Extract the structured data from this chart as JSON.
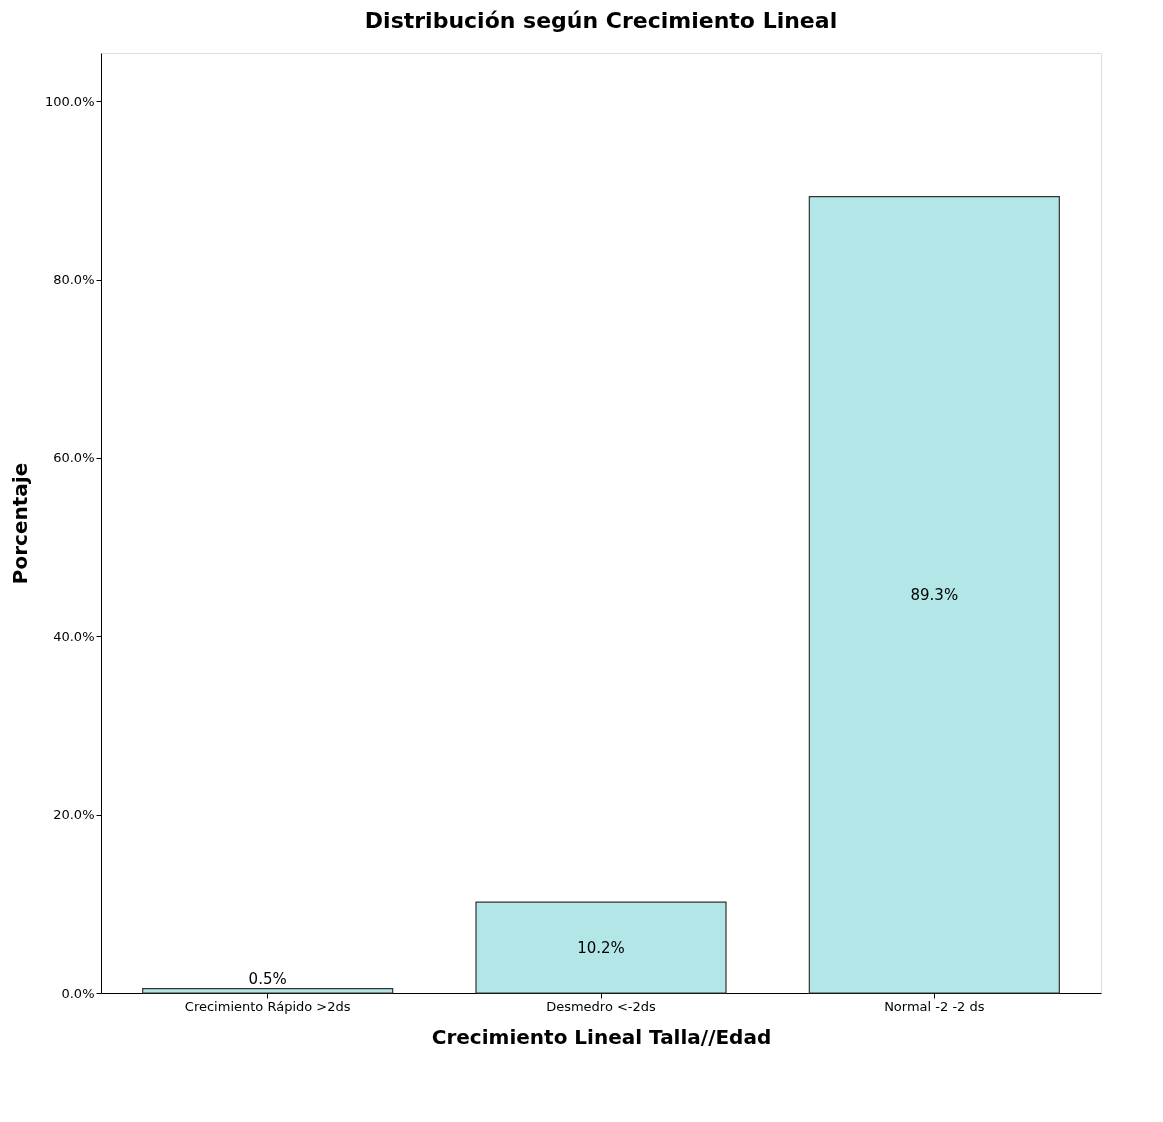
{
  "chart_data": {
    "type": "bar",
    "title": "Distribución según Crecimiento Lineal",
    "xlabel": "Crecimiento Lineal  Talla//Edad",
    "ylabel": "Porcentaje",
    "categories": [
      "Crecimiento Rápido >2ds",
      "Desmedro <-2ds",
      "Normal -2  -2 ds"
    ],
    "values": [
      0.5,
      10.2,
      89.3
    ],
    "color": "#b3e6e6",
    "value_labels": [
      "0.5%",
      "10.2%",
      "89.3%"
    ],
    "ylim": [
      0,
      105.4
    ],
    "yticks": [
      {
        "value": 0,
        "label": "0.0%"
      },
      {
        "value": 20,
        "label": "20.0%"
      },
      {
        "value": 40,
        "label": "40.0%"
      },
      {
        "value": 60,
        "label": "60.0%"
      },
      {
        "value": 80,
        "label": "80.0%"
      },
      {
        "value": 100,
        "label": "100.0%"
      }
    ],
    "grid": false
  }
}
